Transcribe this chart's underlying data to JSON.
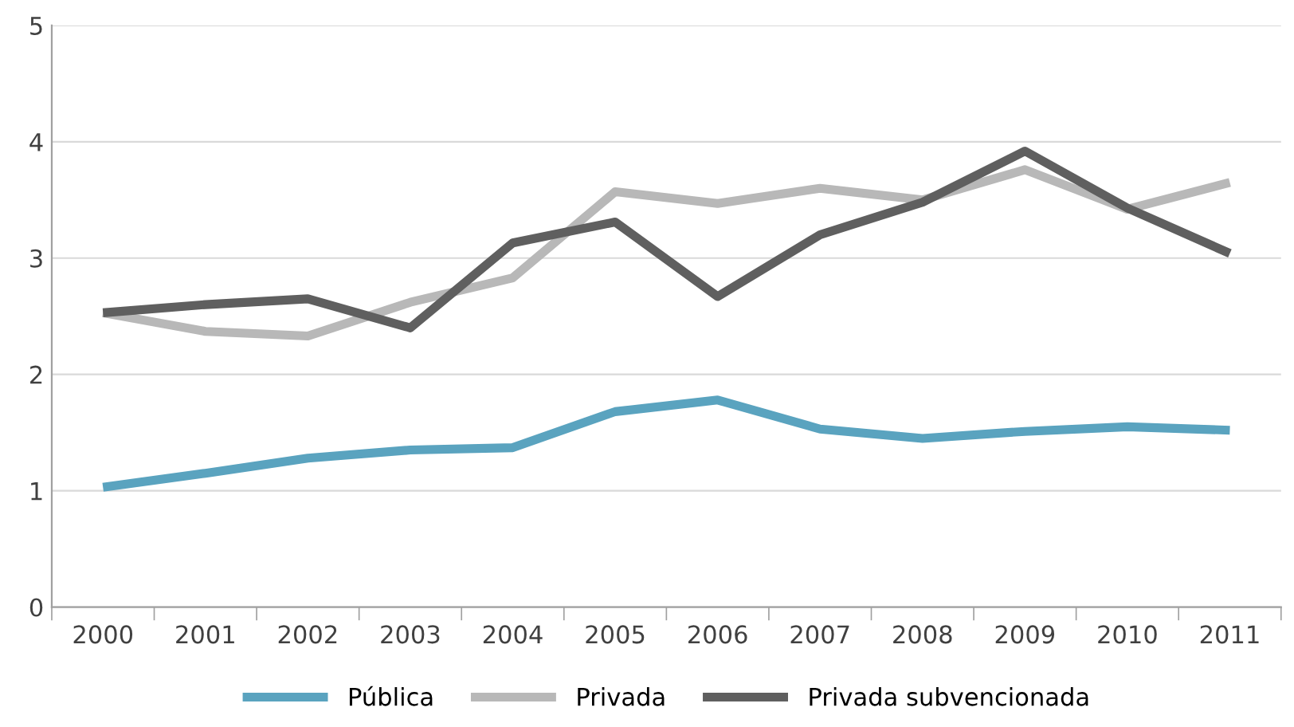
{
  "chart_data": {
    "type": "line",
    "categories": [
      "2000",
      "2001",
      "2002",
      "2003",
      "2004",
      "2005",
      "2006",
      "2007",
      "2008",
      "2009",
      "2010",
      "2011"
    ],
    "series": [
      {
        "name": "Pública",
        "color": "#5aa3bf",
        "values": [
          1.03,
          1.15,
          1.28,
          1.35,
          1.37,
          1.68,
          1.78,
          1.53,
          1.45,
          1.51,
          1.55,
          1.52
        ]
      },
      {
        "name": "Privada",
        "color": "#b8b8b8",
        "values": [
          2.53,
          2.37,
          2.33,
          2.62,
          2.83,
          3.57,
          3.47,
          3.6,
          3.5,
          3.76,
          3.42,
          3.65
        ]
      },
      {
        "name": "Privada subvencionada",
        "color": "#5f5f5f",
        "values": [
          2.53,
          2.6,
          2.65,
          2.4,
          3.13,
          3.31,
          2.67,
          3.2,
          3.48,
          3.92,
          3.43,
          3.04
        ]
      }
    ],
    "ylim": [
      0,
      5
    ],
    "yticks": [
      0,
      1,
      2,
      3,
      4,
      5
    ],
    "grid": "y",
    "legend": "bottom",
    "marker": "none",
    "line_style": "solid"
  }
}
